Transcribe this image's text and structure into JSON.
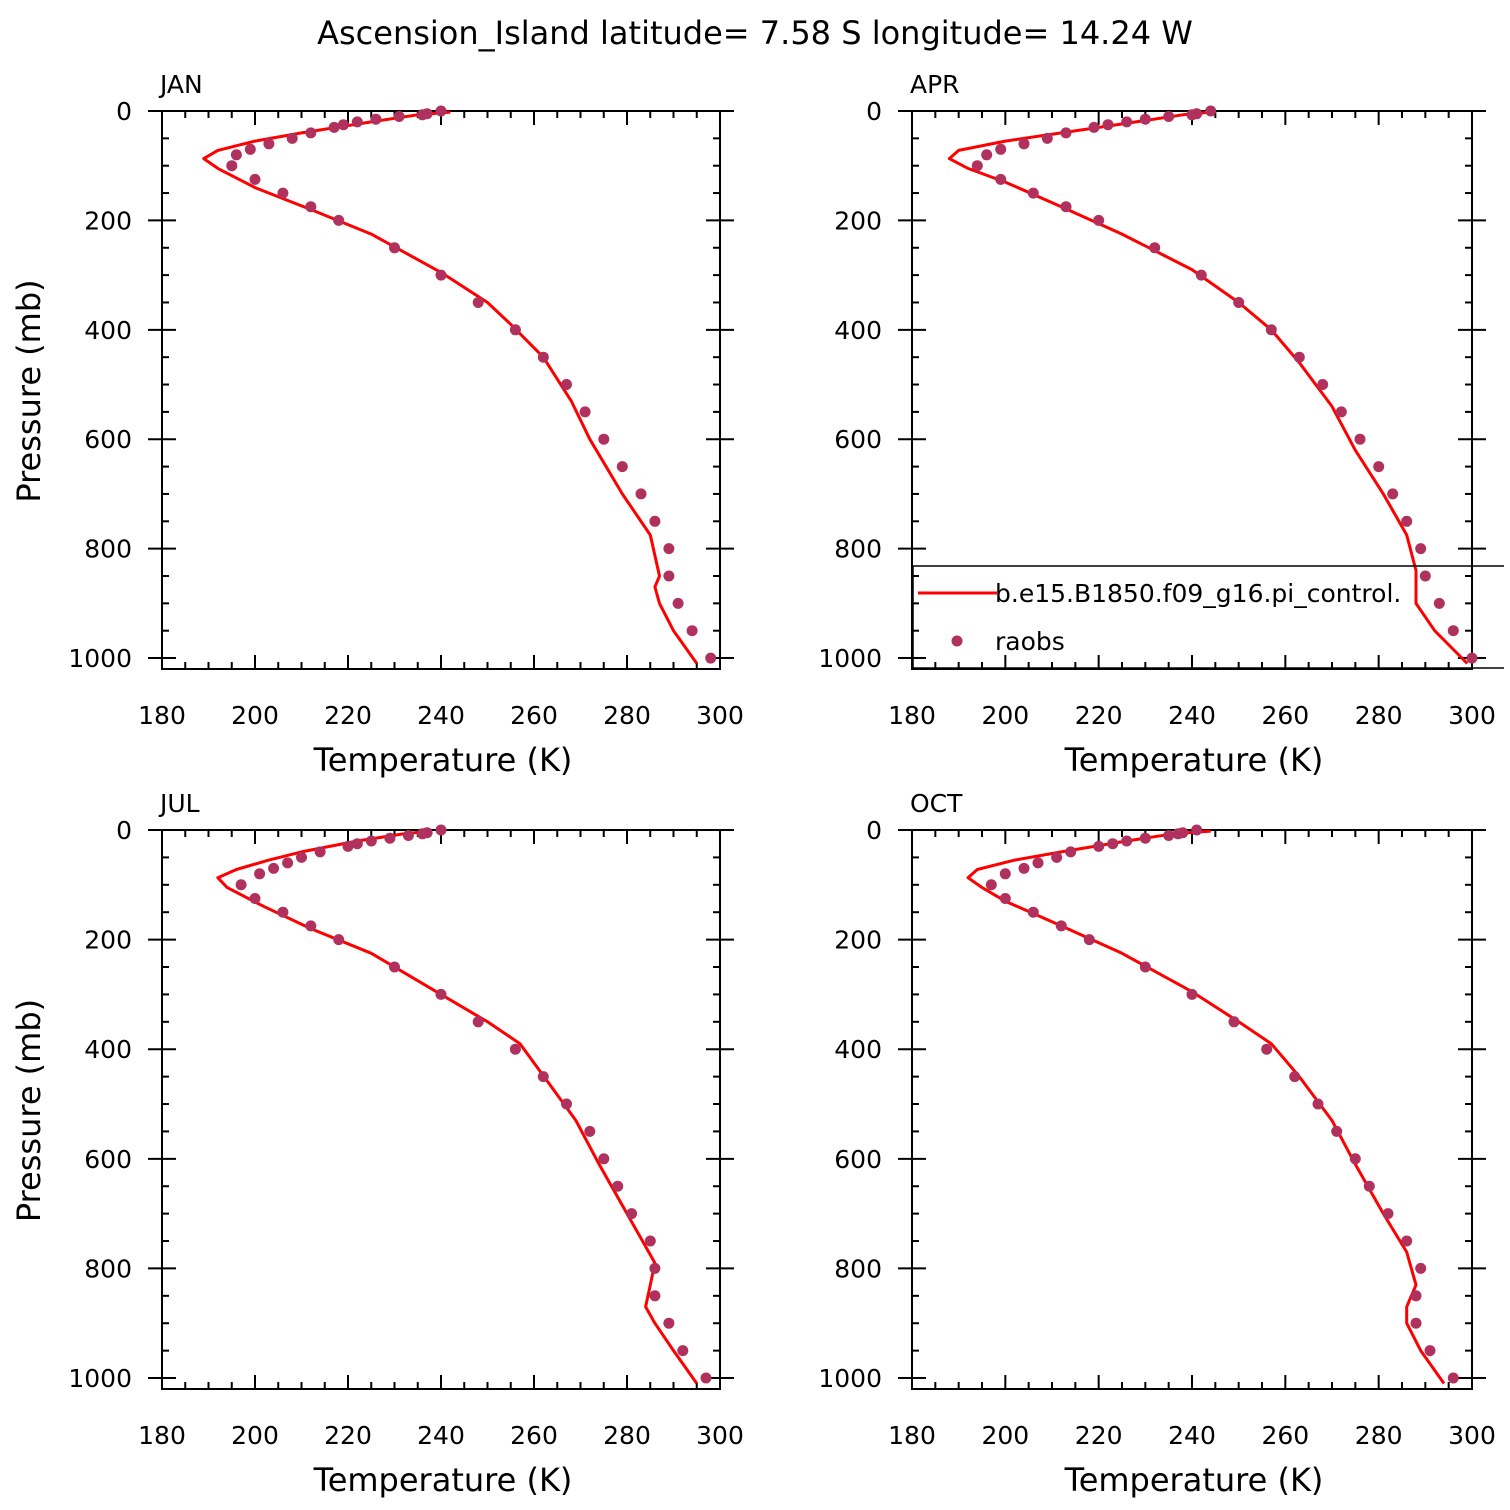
{
  "title": "Ascension_Island  latitude= 7.58 S longitude= 14.24 W",
  "colors": {
    "model_line": "#ff0000",
    "obs_marker": "#b0305e",
    "axes": "#000000"
  },
  "chart_data": [
    {
      "type": "line",
      "title": "JAN",
      "xlabel": "Temperature (K)",
      "ylabel": "Pressure (mb)",
      "xlim": [
        180,
        300
      ],
      "ylim": [
        1020,
        0
      ],
      "x_ticks": [
        "180",
        "200",
        "220",
        "240",
        "260",
        "280",
        "300"
      ],
      "y_ticks": [
        "0",
        "200",
        "400",
        "600",
        "800",
        "1000"
      ],
      "series": [
        {
          "name": "b.e15.B1850.f09_g16.pi_control.",
          "kind": "line",
          "points": [
            [
              242,
              2
            ],
            [
              235,
              7
            ],
            [
              225,
              20
            ],
            [
              210,
              40
            ],
            [
              200,
              55
            ],
            [
              192,
              72
            ],
            [
              189,
              87
            ],
            [
              192,
              105
            ],
            [
              200,
              140
            ],
            [
              212,
              180
            ],
            [
              225,
              225
            ],
            [
              240,
              295
            ],
            [
              250,
              350
            ],
            [
              255,
              390
            ],
            [
              262,
              450
            ],
            [
              268,
              530
            ],
            [
              272,
              600
            ],
            [
              279,
              700
            ],
            [
              285,
              775
            ],
            [
              287,
              850
            ],
            [
              286,
              870
            ],
            [
              287,
              900
            ],
            [
              290,
              950
            ],
            [
              295,
              1010
            ]
          ]
        },
        {
          "name": "raobs",
          "kind": "scatter",
          "points": [
            [
              240,
              0
            ],
            [
              237,
              5
            ],
            [
              236,
              7
            ],
            [
              231,
              10
            ],
            [
              226,
              15
            ],
            [
              222,
              20
            ],
            [
              219,
              25
            ],
            [
              217,
              30
            ],
            [
              212,
              40
            ],
            [
              208,
              50
            ],
            [
              203,
              60
            ],
            [
              199,
              70
            ],
            [
              196,
              80
            ],
            [
              195,
              100
            ],
            [
              200,
              125
            ],
            [
              206,
              150
            ],
            [
              212,
              175
            ],
            [
              218,
              200
            ],
            [
              230,
              250
            ],
            [
              240,
              300
            ],
            [
              248,
              350
            ],
            [
              256,
              400
            ],
            [
              262,
              450
            ],
            [
              267,
              500
            ],
            [
              271,
              550
            ],
            [
              275,
              600
            ],
            [
              279,
              650
            ],
            [
              283,
              700
            ],
            [
              286,
              750
            ],
            [
              289,
              800
            ],
            [
              289,
              850
            ],
            [
              291,
              900
            ],
            [
              294,
              950
            ],
            [
              298,
              1000
            ]
          ]
        }
      ]
    },
    {
      "type": "line",
      "title": "APR",
      "xlabel": "Temperature (K)",
      "ylabel": "",
      "xlim": [
        180,
        300
      ],
      "ylim": [
        1020,
        0
      ],
      "x_ticks": [
        "180",
        "200",
        "220",
        "240",
        "260",
        "280",
        "300"
      ],
      "y_ticks": [
        "0",
        "200",
        "400",
        "600",
        "800",
        "1000"
      ],
      "series": [
        {
          "name": "b.e15.B1850.f09_g16.pi_control.",
          "kind": "line",
          "points": [
            [
              244,
              2
            ],
            [
              238,
              7
            ],
            [
              228,
              20
            ],
            [
              212,
              40
            ],
            [
              200,
              55
            ],
            [
              190,
              72
            ],
            [
              188,
              87
            ],
            [
              192,
              105
            ],
            [
              200,
              130
            ],
            [
              212,
              175
            ],
            [
              225,
              225
            ],
            [
              240,
              290
            ],
            [
              250,
              350
            ],
            [
              257,
              400
            ],
            [
              263,
              460
            ],
            [
              270,
              540
            ],
            [
              275,
              620
            ],
            [
              281,
              700
            ],
            [
              286,
              775
            ],
            [
              288,
              840
            ],
            [
              288,
              900
            ],
            [
              292,
              950
            ],
            [
              299,
              1010
            ]
          ]
        },
        {
          "name": "raobs",
          "kind": "scatter",
          "points": [
            [
              244,
              0
            ],
            [
              241,
              5
            ],
            [
              240,
              7
            ],
            [
              235,
              10
            ],
            [
              230,
              15
            ],
            [
              226,
              20
            ],
            [
              222,
              25
            ],
            [
              219,
              30
            ],
            [
              213,
              40
            ],
            [
              209,
              50
            ],
            [
              204,
              60
            ],
            [
              199,
              70
            ],
            [
              196,
              80
            ],
            [
              194,
              100
            ],
            [
              199,
              125
            ],
            [
              206,
              150
            ],
            [
              213,
              175
            ],
            [
              220,
              200
            ],
            [
              232,
              250
            ],
            [
              242,
              300
            ],
            [
              250,
              350
            ],
            [
              257,
              400
            ],
            [
              263,
              450
            ],
            [
              268,
              500
            ],
            [
              272,
              550
            ],
            [
              276,
              600
            ],
            [
              280,
              650
            ],
            [
              283,
              700
            ],
            [
              286,
              750
            ],
            [
              289,
              800
            ],
            [
              290,
              850
            ],
            [
              293,
              900
            ],
            [
              296,
              950
            ],
            [
              300,
              1000
            ]
          ]
        }
      ],
      "legend": {
        "position": "bottom-right",
        "entries": [
          {
            "label": "b.e15.B1850.f09_g16.pi_control.",
            "marker": "line"
          },
          {
            "label": "raobs",
            "marker": "dot"
          }
        ]
      }
    },
    {
      "type": "line",
      "title": "JUL",
      "xlabel": "Temperature (K)",
      "ylabel": "Pressure (mb)",
      "xlim": [
        180,
        300
      ],
      "ylim": [
        1020,
        0
      ],
      "x_ticks": [
        "180",
        "200",
        "220",
        "240",
        "260",
        "280",
        "300"
      ],
      "y_ticks": [
        "0",
        "200",
        "400",
        "600",
        "800",
        "1000"
      ],
      "series": [
        {
          "name": "b.e15.B1850.f09_g16.pi_control.",
          "kind": "line",
          "points": [
            [
              238,
              2
            ],
            [
              232,
              7
            ],
            [
              222,
              20
            ],
            [
              210,
              40
            ],
            [
              203,
              55
            ],
            [
              196,
              72
            ],
            [
              192,
              87
            ],
            [
              194,
              105
            ],
            [
              202,
              140
            ],
            [
              212,
              180
            ],
            [
              225,
              225
            ],
            [
              240,
              300
            ],
            [
              250,
              350
            ],
            [
              257,
              390
            ],
            [
              263,
              460
            ],
            [
              269,
              530
            ],
            [
              274,
              610
            ],
            [
              280,
              700
            ],
            [
              284,
              760
            ],
            [
              286,
              790
            ],
            [
              285,
              830
            ],
            [
              284,
              870
            ],
            [
              286,
              900
            ],
            [
              290,
              950
            ],
            [
              295,
              1010
            ]
          ]
        },
        {
          "name": "raobs",
          "kind": "scatter",
          "points": [
            [
              240,
              0
            ],
            [
              237,
              5
            ],
            [
              236,
              7
            ],
            [
              233,
              10
            ],
            [
              229,
              15
            ],
            [
              225,
              20
            ],
            [
              222,
              25
            ],
            [
              220,
              30
            ],
            [
              214,
              40
            ],
            [
              210,
              50
            ],
            [
              207,
              60
            ],
            [
              204,
              70
            ],
            [
              201,
              80
            ],
            [
              197,
              100
            ],
            [
              200,
              125
            ],
            [
              206,
              150
            ],
            [
              212,
              175
            ],
            [
              218,
              200
            ],
            [
              230,
              250
            ],
            [
              240,
              300
            ],
            [
              248,
              350
            ],
            [
              256,
              400
            ],
            [
              262,
              450
            ],
            [
              267,
              500
            ],
            [
              272,
              550
            ],
            [
              275,
              600
            ],
            [
              278,
              650
            ],
            [
              281,
              700
            ],
            [
              285,
              750
            ],
            [
              286,
              800
            ],
            [
              286,
              850
            ],
            [
              289,
              900
            ],
            [
              292,
              950
            ],
            [
              297,
              1000
            ]
          ]
        }
      ]
    },
    {
      "type": "line",
      "title": "OCT",
      "xlabel": "Temperature (K)",
      "ylabel": "",
      "xlim": [
        180,
        300
      ],
      "ylim": [
        1020,
        0
      ],
      "x_ticks": [
        "180",
        "200",
        "220",
        "240",
        "260",
        "280",
        "300"
      ],
      "y_ticks": [
        "0",
        "200",
        "400",
        "600",
        "800",
        "1000"
      ],
      "series": [
        {
          "name": "b.e15.B1850.f09_g16.pi_control.",
          "kind": "line",
          "points": [
            [
              244,
              2
            ],
            [
              236,
              7
            ],
            [
              226,
              20
            ],
            [
              212,
              40
            ],
            [
              202,
              55
            ],
            [
              194,
              72
            ],
            [
              192,
              87
            ],
            [
              195,
              105
            ],
            [
              200,
              130
            ],
            [
              212,
              175
            ],
            [
              225,
              225
            ],
            [
              240,
              295
            ],
            [
              250,
              350
            ],
            [
              257,
              390
            ],
            [
              263,
              450
            ],
            [
              270,
              530
            ],
            [
              275,
              610
            ],
            [
              281,
              700
            ],
            [
              286,
              770
            ],
            [
              288,
              830
            ],
            [
              286,
              870
            ],
            [
              286,
              900
            ],
            [
              289,
              950
            ],
            [
              294,
              1010
            ]
          ]
        },
        {
          "name": "raobs",
          "kind": "scatter",
          "points": [
            [
              241,
              0
            ],
            [
              238,
              5
            ],
            [
              237,
              7
            ],
            [
              235,
              10
            ],
            [
              230,
              15
            ],
            [
              226,
              20
            ],
            [
              223,
              25
            ],
            [
              220,
              30
            ],
            [
              214,
              40
            ],
            [
              211,
              50
            ],
            [
              207,
              60
            ],
            [
              204,
              70
            ],
            [
              200,
              80
            ],
            [
              197,
              100
            ],
            [
              200,
              125
            ],
            [
              206,
              150
            ],
            [
              212,
              175
            ],
            [
              218,
              200
            ],
            [
              230,
              250
            ],
            [
              240,
              300
            ],
            [
              249,
              350
            ],
            [
              256,
              400
            ],
            [
              262,
              450
            ],
            [
              267,
              500
            ],
            [
              271,
              550
            ],
            [
              275,
              600
            ],
            [
              278,
              650
            ],
            [
              282,
              700
            ],
            [
              286,
              750
            ],
            [
              289,
              800
            ],
            [
              288,
              850
            ],
            [
              288,
              900
            ],
            [
              291,
              950
            ],
            [
              296,
              1000
            ]
          ]
        }
      ]
    }
  ]
}
